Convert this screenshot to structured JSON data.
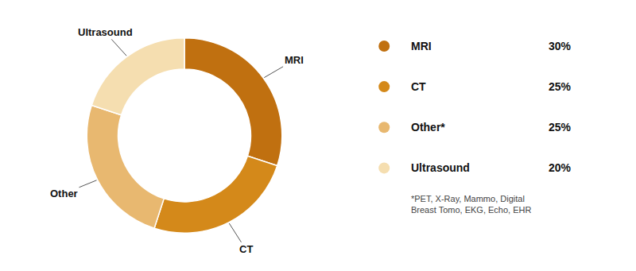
{
  "chart_data": {
    "type": "donut",
    "categories": [
      "MRI",
      "CT",
      "Other*",
      "Ultrasound"
    ],
    "values": [
      30,
      25,
      25,
      20
    ],
    "value_labels": [
      "30%",
      "25%",
      "25%",
      "20%"
    ],
    "colors": [
      "#c07010",
      "#d4891a",
      "#e8b870",
      "#f5deb0"
    ],
    "annotations": [
      "MRI",
      "CT",
      "Other",
      "Ultrasound"
    ],
    "footnote": "*PET, X-Ray, Mammo, Digital\nBreast Tomo, EKG, Echo, EHR",
    "legend": "right"
  }
}
